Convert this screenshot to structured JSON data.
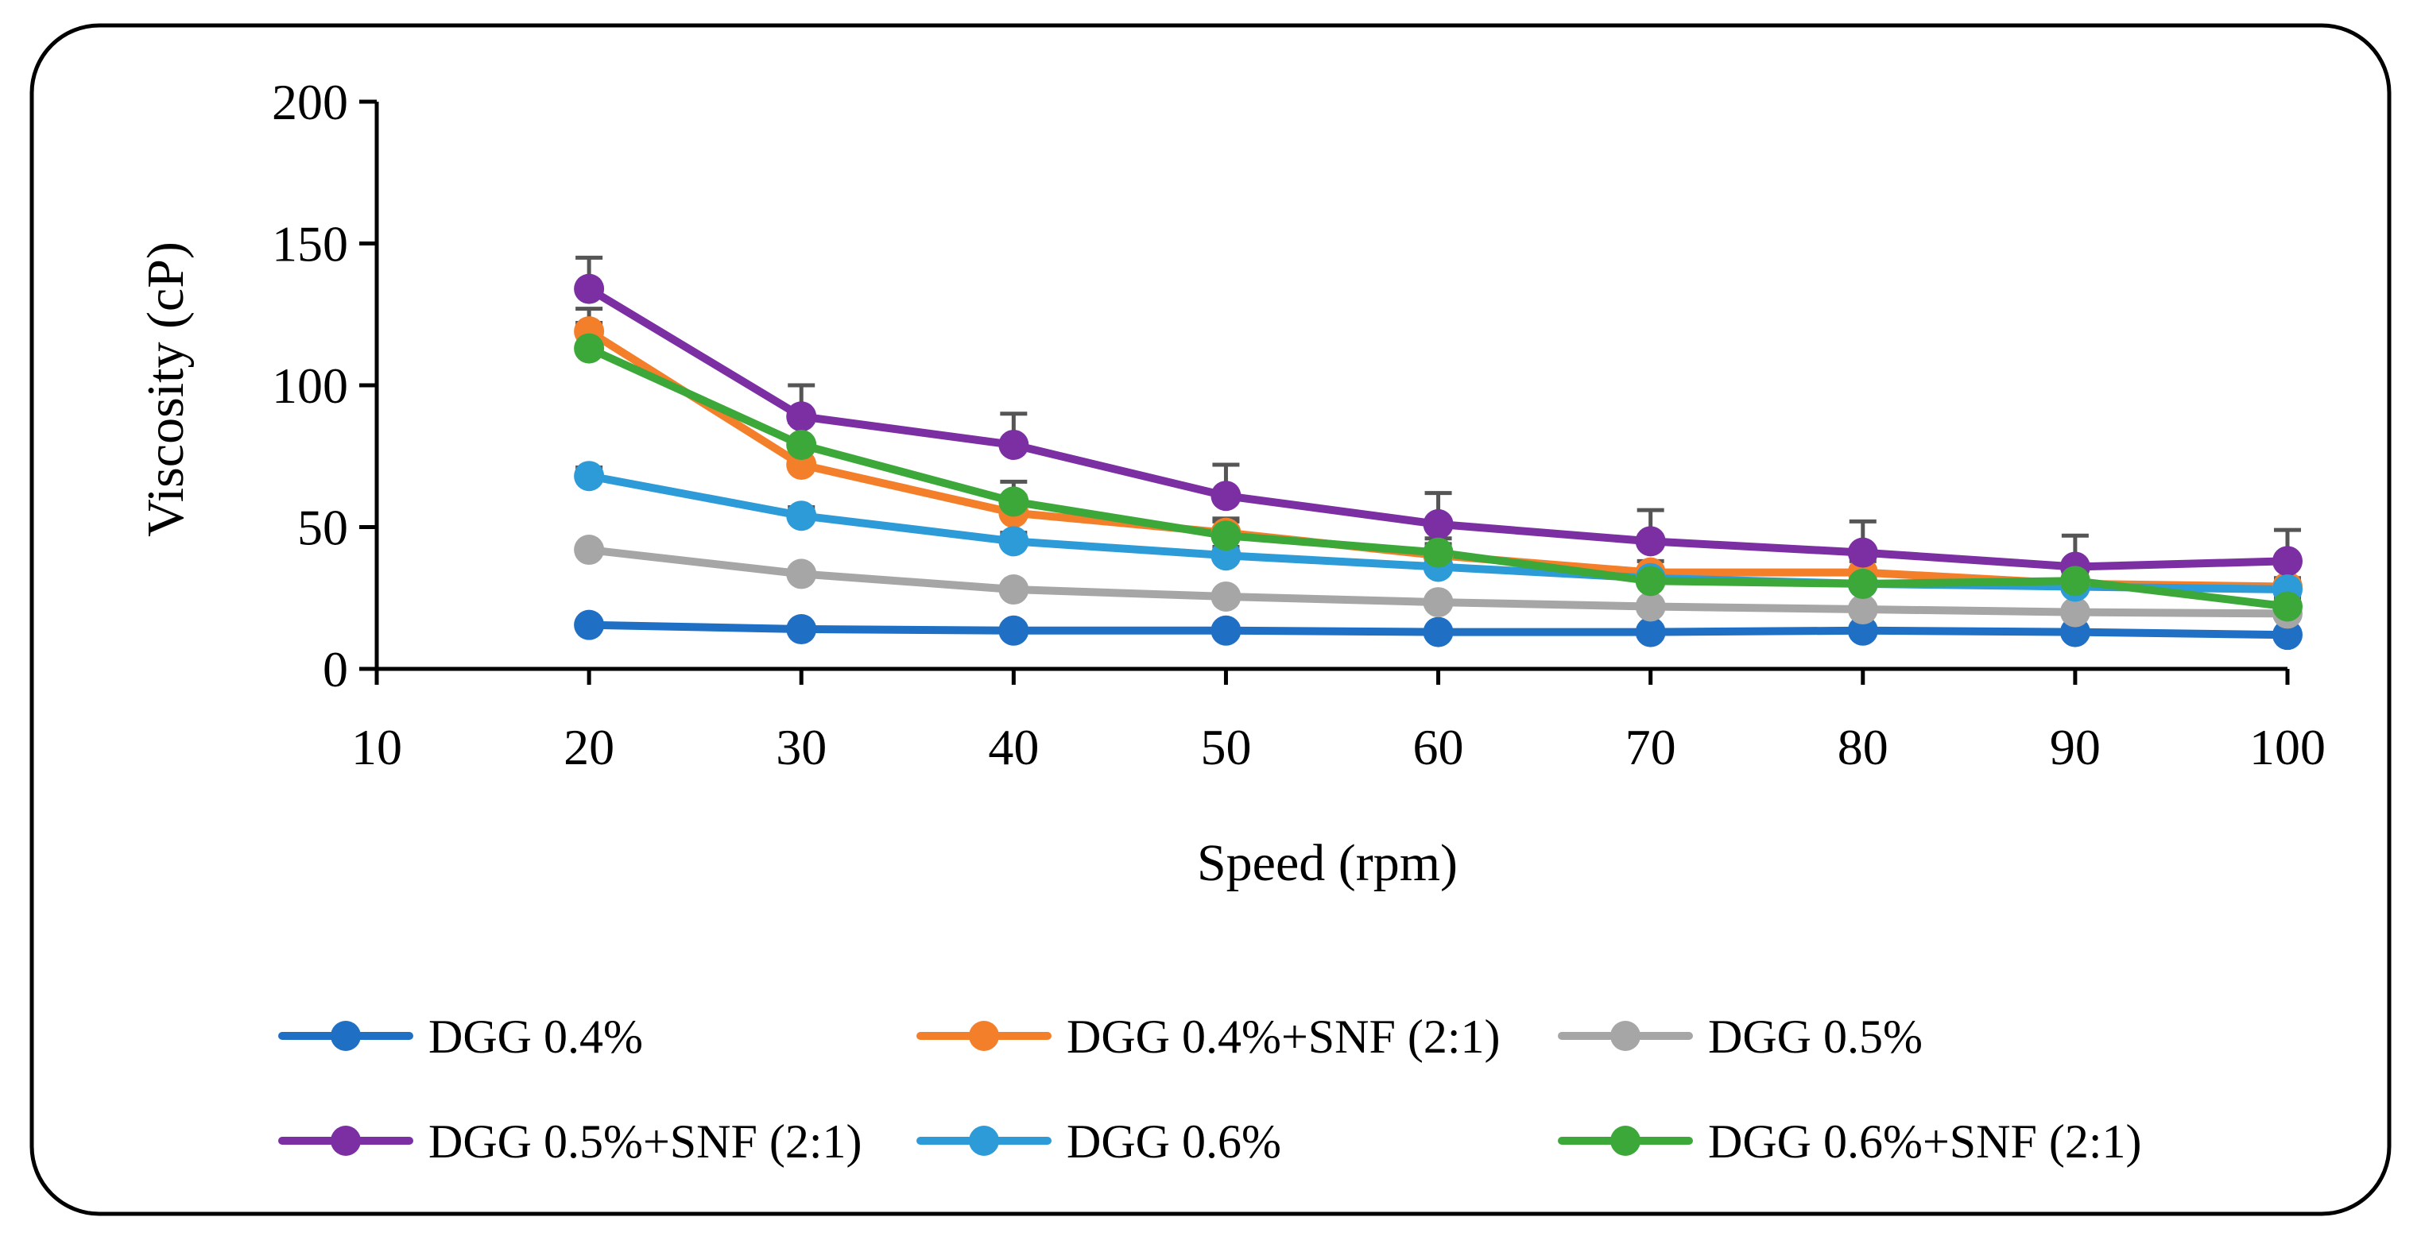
{
  "chart_data": {
    "type": "line",
    "title": "",
    "xlabel": "Speed (rpm)",
    "ylabel": "Viscosity (cP)",
    "xlim": [
      10,
      100
    ],
    "ylim": [
      0,
      200
    ],
    "xticks": [
      "10",
      "20",
      "30",
      "40",
      "50",
      "60",
      "70",
      "80",
      "90",
      "100"
    ],
    "yticks": [
      "0",
      "50",
      "100",
      "150",
      "200"
    ],
    "grid": false,
    "legend_position": "bottom",
    "x": [
      20,
      30,
      40,
      50,
      60,
      70,
      80,
      90,
      100
    ],
    "series": [
      {
        "name": "DGG 0.4%",
        "color": "#1f6fc4",
        "values": [
          15.5,
          14,
          13.5,
          13.5,
          13,
          13,
          13.5,
          13,
          12
        ],
        "errors": [
          0,
          0,
          0,
          0,
          0,
          0,
          0,
          0,
          0
        ]
      },
      {
        "name": "DGG 0.4%+SNF (2:1)",
        "color": "#f47f2a",
        "values": [
          119,
          72,
          55,
          48,
          40,
          34,
          34,
          30,
          29
        ],
        "errors": [
          8,
          7,
          6,
          5,
          4,
          4,
          4,
          3,
          3
        ]
      },
      {
        "name": "DGG 0.5%",
        "color": "#a6a6a6",
        "values": [
          42,
          33.5,
          28,
          25.5,
          23.5,
          22,
          21,
          20,
          19.5
        ],
        "errors": [
          0,
          0,
          0,
          0,
          0,
          0,
          0,
          0,
          0
        ]
      },
      {
        "name": "DGG 0.5%+SNF (2:1)",
        "color": "#7b2fa3",
        "values": [
          134,
          89,
          79,
          61,
          51,
          45,
          41,
          36,
          38
        ],
        "errors": [
          11,
          11,
          11,
          11,
          11,
          11,
          11,
          11,
          11
        ]
      },
      {
        "name": "DGG 0.6%",
        "color": "#2d9bd8",
        "values": [
          68,
          54,
          45,
          40,
          36,
          32,
          30,
          29,
          28
        ],
        "errors": [
          3,
          3,
          3,
          3,
          3,
          3,
          3,
          3,
          3
        ]
      },
      {
        "name": "DGG 0.6%+SNF (2:1)",
        "color": "#3ca83a",
        "values": [
          113,
          79,
          59,
          47,
          41,
          31,
          30,
          31,
          22
        ],
        "errors": [
          9,
          8,
          7,
          5,
          5,
          4,
          3,
          3,
          3
        ]
      }
    ]
  }
}
